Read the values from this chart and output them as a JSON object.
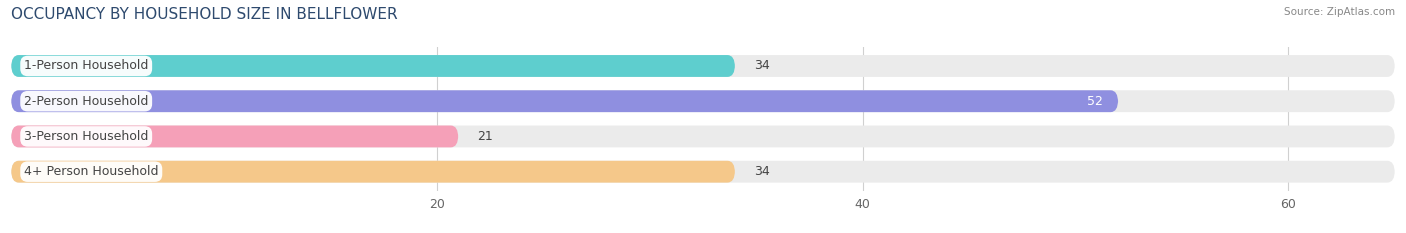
{
  "title": "OCCUPANCY BY HOUSEHOLD SIZE IN BELLFLOWER",
  "source": "Source: ZipAtlas.com",
  "categories": [
    "1-Person Household",
    "2-Person Household",
    "3-Person Household",
    "4+ Person Household"
  ],
  "values": [
    34,
    52,
    21,
    34
  ],
  "bar_colors": [
    "#5ecece",
    "#8f8fe0",
    "#f5a0b8",
    "#f5c88a"
  ],
  "bar_bg_color": "#ebebeb",
  "xlim": [
    0,
    65
  ],
  "xticks": [
    20,
    40,
    60
  ],
  "title_fontsize": 11,
  "label_fontsize": 9,
  "value_fontsize": 9,
  "tick_fontsize": 9,
  "bar_height": 0.62,
  "bg_color": "#ffffff",
  "title_color": "#2e4a6e",
  "label_text_color": "#444444",
  "grid_color": "#d0d0d0",
  "source_color": "#888888"
}
